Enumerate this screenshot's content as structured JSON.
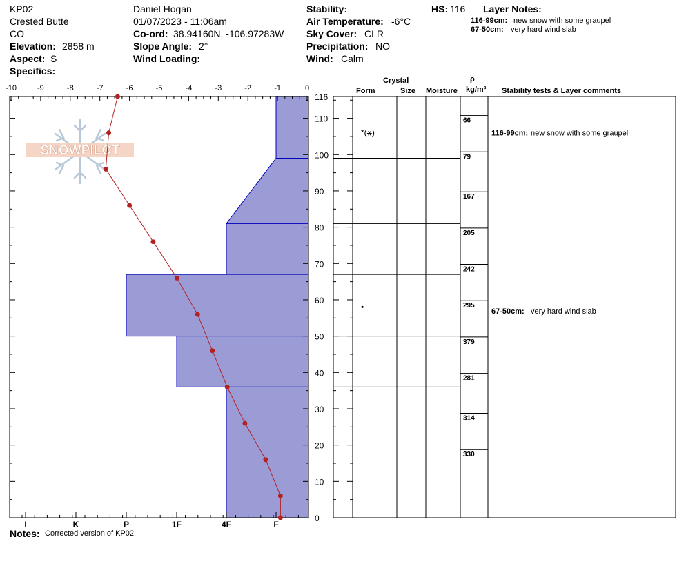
{
  "header": {
    "observer_code": "KP02",
    "location": "Crested Butte",
    "state": "CO",
    "elevation_label": "Elevation:",
    "elevation_value": "2858 m",
    "aspect_label": "Aspect:",
    "aspect_value": "S",
    "specifics_label": "Specifics:",
    "observer_name": "Daniel Hogan",
    "datetime": "01/07/2023 - 11:06am",
    "coord_label": "Co-ord:",
    "coord_value": "38.94160N, -106.97283W",
    "slope_label": "Slope Angle:",
    "slope_value": "2°",
    "wind_loading_label": "Wind Loading:",
    "stability_label": "Stability:",
    "air_temp_label": "Air Temperature:",
    "air_temp_value": "-6°C",
    "sky_label": "Sky Cover:",
    "sky_value": "CLR",
    "precip_label": "Precipitation:",
    "precip_value": "NO",
    "wind_label": "Wind:",
    "wind_value": "Calm",
    "hs_label": "HS:",
    "hs_value": "116",
    "layer_notes_label": "Layer Notes:",
    "layer_notes": [
      {
        "range": "116-99cm:",
        "text": "new snow with some graupel"
      },
      {
        "range": "67-50cm:",
        "text": "very hard wind slab"
      }
    ]
  },
  "columns": {
    "crystal": "Crystal",
    "form": "Form",
    "size": "Size",
    "moisture": "Moisture",
    "rho": "ρ",
    "density_unit": "kg/m³",
    "comments": "Stability tests & Layer comments"
  },
  "watermark": "SNOWPILOT",
  "notes_label": "Notes:",
  "notes_text": "Corrected version of KP02.",
  "colors": {
    "hardness_fill": "#9b9bd6",
    "hardness_stroke": "#0000bb",
    "temp_line": "#b22222",
    "border": "#000000"
  },
  "chart_data": {
    "type": "snow-profile",
    "temperature_axis": {
      "ticks": [
        "-10",
        "-9",
        "-8",
        "-7",
        "-6",
        "-5",
        "-4",
        "-3",
        "-2",
        "-1",
        "0"
      ],
      "range": [
        -10,
        0
      ]
    },
    "hardness_axis": {
      "ticks": [
        "I",
        "K",
        "P",
        "1F",
        "4F",
        "F"
      ]
    },
    "height_axis": {
      "ticks": [
        0,
        10,
        20,
        30,
        40,
        50,
        60,
        70,
        80,
        90,
        100,
        110,
        116
      ],
      "range": [
        0,
        116
      ]
    },
    "hardness_profile": [
      {
        "bottom": 99,
        "top": 116,
        "hardness": "F"
      },
      {
        "bottom": 81,
        "top": 99,
        "hardness_bottom": "4F",
        "hardness_top": "F"
      },
      {
        "bottom": 67,
        "top": 81,
        "hardness": "4F"
      },
      {
        "bottom": 50,
        "top": 67,
        "hardness": "P+"
      },
      {
        "bottom": 36,
        "top": 50,
        "hardness": "1F+"
      },
      {
        "bottom": 0,
        "top": 36,
        "hardness": "4F"
      }
    ],
    "temperature_profile": [
      {
        "height": 116,
        "temp": -6.4
      },
      {
        "height": 106,
        "temp": -6.7
      },
      {
        "height": 96,
        "temp": -6.8
      },
      {
        "height": 86,
        "temp": -6.0
      },
      {
        "height": 76,
        "temp": -5.2
      },
      {
        "height": 66,
        "temp": -4.4
      },
      {
        "height": 56,
        "temp": -3.7
      },
      {
        "height": 46,
        "temp": -3.2
      },
      {
        "height": 36,
        "temp": -2.7
      },
      {
        "height": 26,
        "temp": -2.1
      },
      {
        "height": 16,
        "temp": -1.4
      },
      {
        "height": 6,
        "temp": -0.9
      },
      {
        "height": 0,
        "temp": -0.9
      }
    ],
    "layer_boundaries": [
      116,
      99,
      81,
      67,
      50,
      36
    ],
    "crystal_forms": [
      {
        "height": 106,
        "symbol": "*(⚹)"
      },
      {
        "height": 58,
        "symbol": "•"
      }
    ],
    "densities": [
      {
        "height": 110,
        "value": "66"
      },
      {
        "height": 100,
        "value": "79"
      },
      {
        "height": 89,
        "value": "167"
      },
      {
        "height": 79,
        "value": "205"
      },
      {
        "height": 69,
        "value": "242"
      },
      {
        "height": 59,
        "value": "295"
      },
      {
        "height": 49,
        "value": "379"
      },
      {
        "height": 39,
        "value": "281"
      },
      {
        "height": 28,
        "value": "314"
      },
      {
        "height": 18,
        "value": "330"
      }
    ],
    "comments": [
      {
        "height": 106,
        "range": "116-99cm:",
        "text": "new snow with some graupel"
      },
      {
        "height": 57,
        "range": "67-50cm:",
        "text": "very hard wind slab"
      }
    ]
  }
}
